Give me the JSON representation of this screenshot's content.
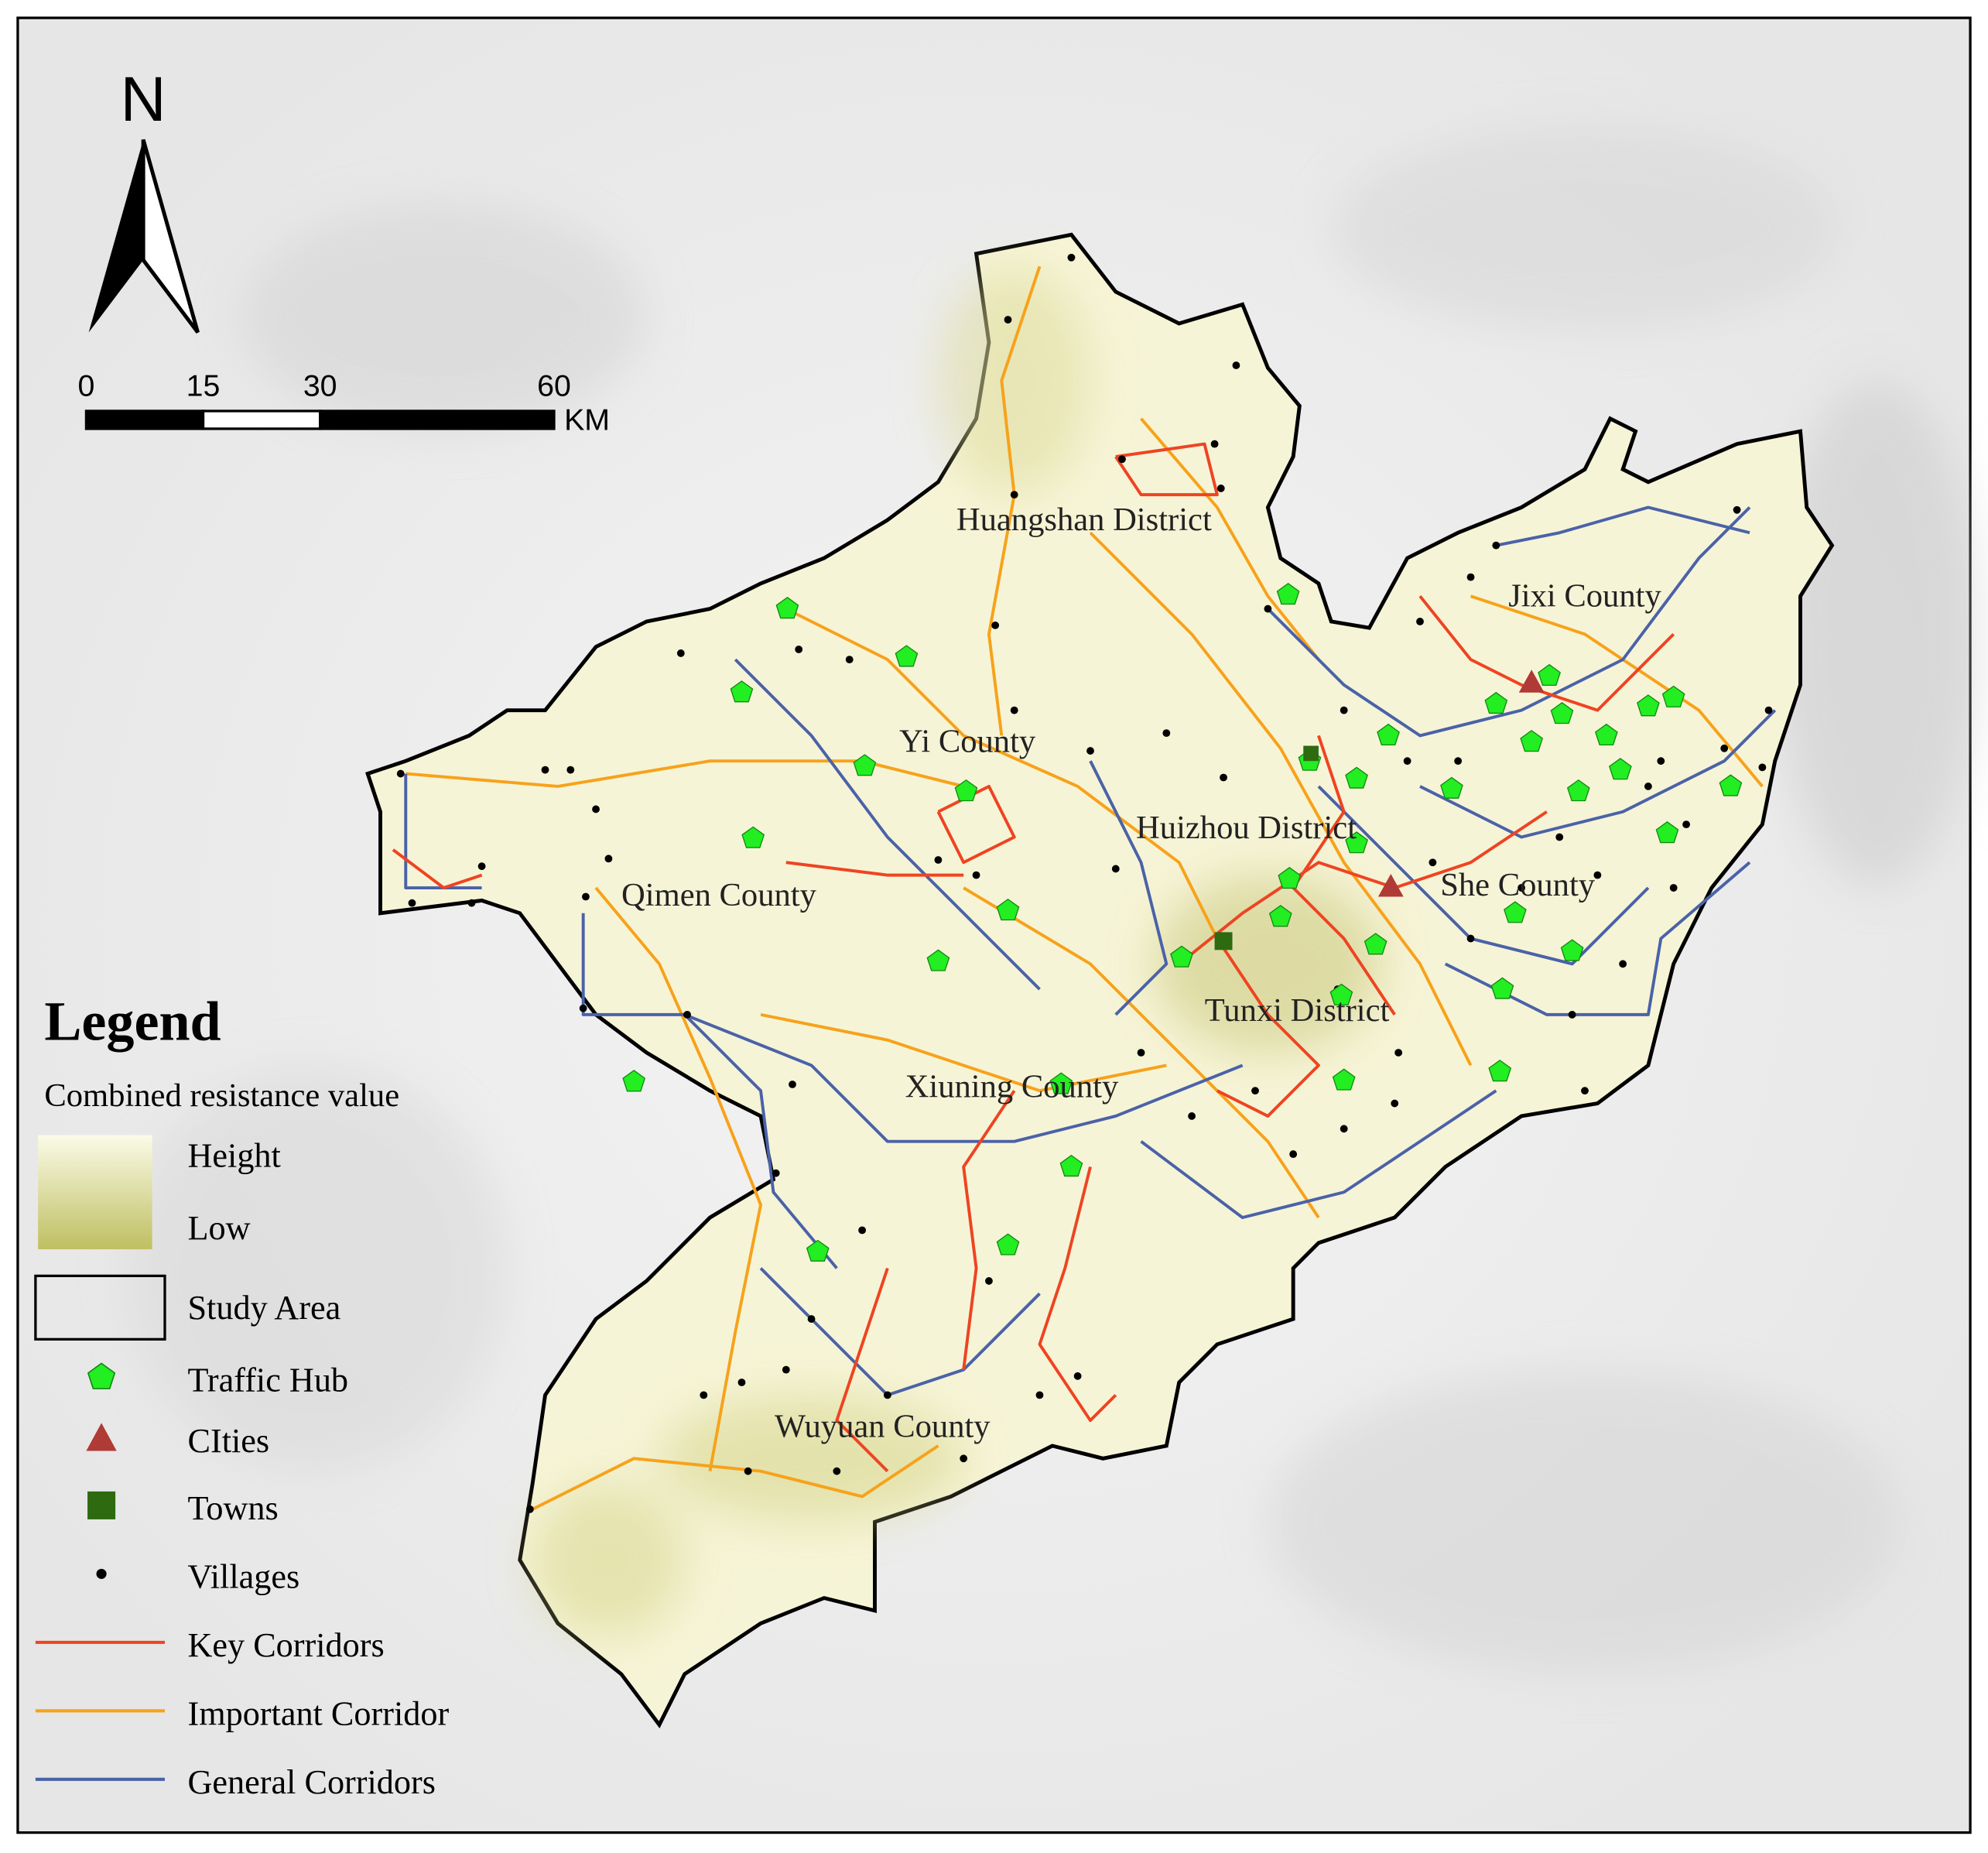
{
  "north_arrow": {
    "label": "N"
  },
  "scale_bar": {
    "ticks": [
      0,
      15,
      30,
      60
    ],
    "unit": "KM"
  },
  "places": [
    {
      "label": "Huangshan District"
    },
    {
      "label": "Jixi County"
    },
    {
      "label": "Yi County"
    },
    {
      "label": "Huizhou District"
    },
    {
      "label": "Qimen County"
    },
    {
      "label": "She County"
    },
    {
      "label": "Tunxi District"
    },
    {
      "label": "Xiuning County"
    },
    {
      "label": "Wuyuan County"
    }
  ],
  "legend": {
    "title": "Legend",
    "resistance": {
      "title": "Combined resistance value",
      "high": "Height",
      "low": "Low"
    },
    "items": [
      {
        "label": "Study Area",
        "symbol": "box",
        "color": "#000000"
      },
      {
        "label": "Traffic Hub",
        "symbol": "pentagon",
        "color": "#22ee22"
      },
      {
        "label": "CIties",
        "symbol": "triangle",
        "color": "#b03a36"
      },
      {
        "label": "Towns",
        "symbol": "square",
        "color": "#2d6a10"
      },
      {
        "label": "Villages",
        "symbol": "dot",
        "color": "#000000"
      },
      {
        "label": "Key Corridors",
        "symbol": "line",
        "color": "#ee4422"
      },
      {
        "label": "Important Corridor",
        "symbol": "line",
        "color": "#f7a21b"
      },
      {
        "label": "General Corridors",
        "symbol": "line",
        "color": "#4a62a8"
      }
    ]
  }
}
